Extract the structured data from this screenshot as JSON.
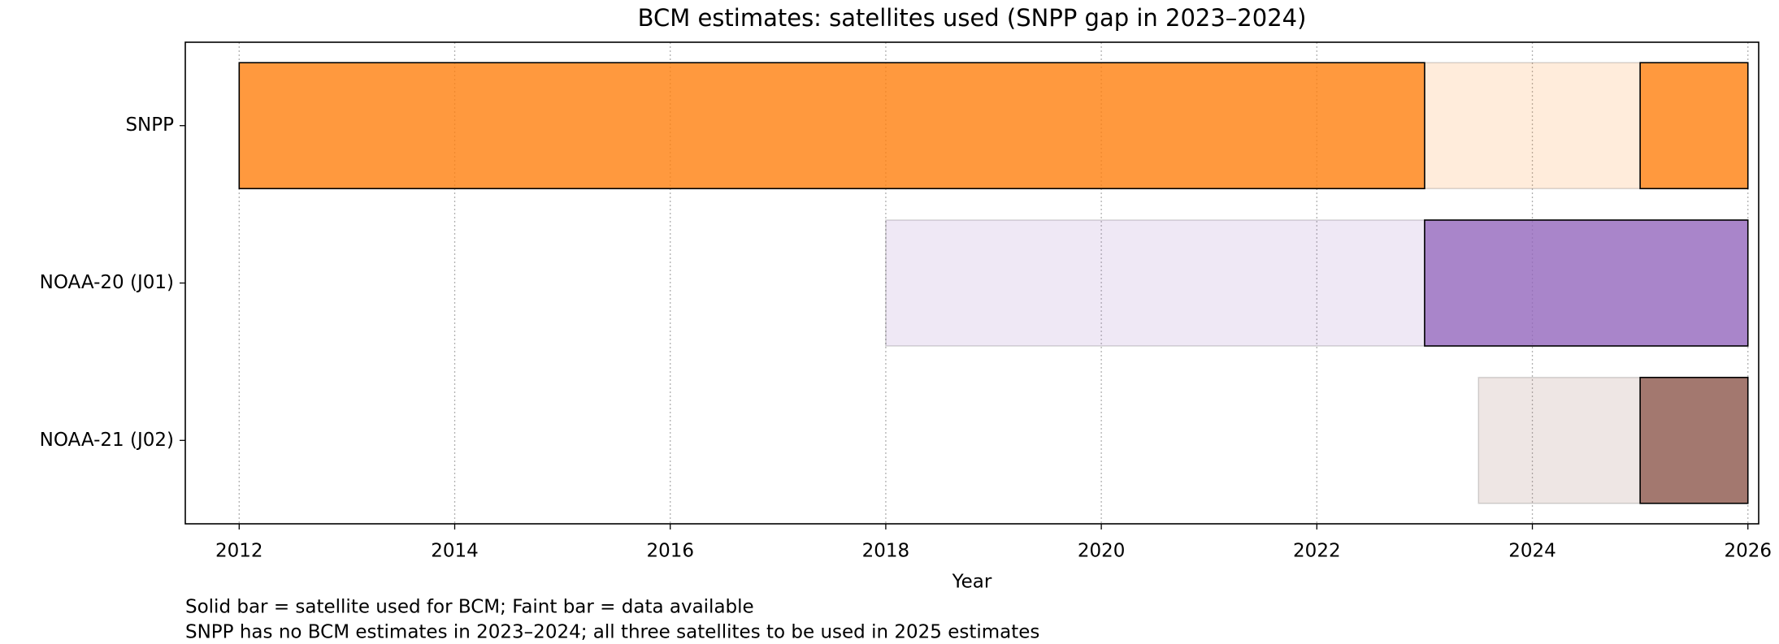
{
  "chart_data": {
    "type": "timeline",
    "title": "BCM estimates: satellites used (SNPP gap in 2023–2024)",
    "xlabel": "Year",
    "notes": [
      "Solid bar = satellite used for BCM; Faint bar = data available",
      "SNPP has no BCM estimates in 2023–2024; all three satellites to be used in 2025 estimates"
    ],
    "xlim": [
      2011.5,
      2026.1
    ],
    "xticks": [
      2012,
      2014,
      2016,
      2018,
      2020,
      2022,
      2024,
      2026
    ],
    "grid": true,
    "rows": [
      {
        "name": "SNPP",
        "color": "#ff7f0e",
        "available": [
          [
            2023,
            2025
          ]
        ],
        "used": [
          [
            2012,
            2023
          ],
          [
            2025,
            2026
          ]
        ]
      },
      {
        "name": "NOAA-20 (J01)",
        "color": "#9467bd",
        "available": [
          [
            2018,
            2023
          ]
        ],
        "used": [
          [
            2023,
            2026
          ]
        ]
      },
      {
        "name": "NOAA-21 (J02)",
        "color": "#8c564b",
        "available": [
          [
            2023.5,
            2025
          ]
        ],
        "used": [
          [
            2025,
            2026
          ]
        ]
      }
    ]
  }
}
